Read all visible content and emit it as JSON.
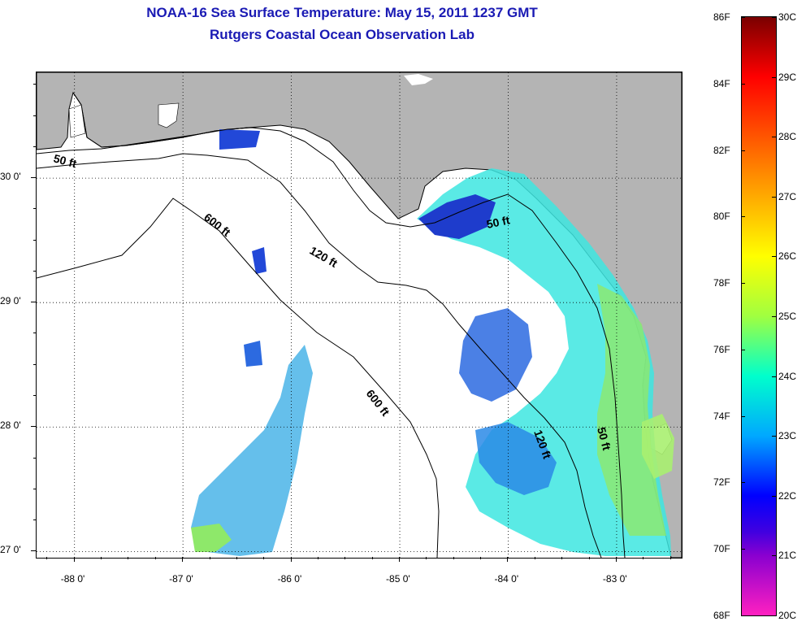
{
  "header": {
    "title_line1": "NOAA-16 Sea Surface Temperature:  May 15, 2011 1237 GMT",
    "title_line2": "Rutgers Coastal Ocean Observation Lab"
  },
  "map": {
    "lon_range": [
      -88.35,
      -82.4
    ],
    "lat_range": [
      26.95,
      30.85
    ],
    "lon_ticks": [
      {
        "value": -88,
        "label": "-88 0'"
      },
      {
        "value": -87,
        "label": "-87 0'"
      },
      {
        "value": -86,
        "label": "-86 0'"
      },
      {
        "value": -85,
        "label": "-85 0'"
      },
      {
        "value": -84,
        "label": "-84 0'"
      },
      {
        "value": -83,
        "label": "-83 0'"
      }
    ],
    "lat_ticks": [
      {
        "value": 30,
        "label": "30 0'"
      },
      {
        "value": 29,
        "label": "29 0'"
      },
      {
        "value": 28,
        "label": "28 0'"
      },
      {
        "value": 27,
        "label": "27 0'"
      }
    ],
    "depth_labels": [
      "50 ft",
      "600 ft",
      "120 ft",
      "50 ft",
      "600 ft",
      "120 ft",
      "50 ft"
    ],
    "colors": {
      "land": "#b4b4b4",
      "ocean_no_data": "#ffffff",
      "coastline": "#000000"
    }
  },
  "colorbar": {
    "range_c": [
      20,
      30
    ],
    "fahrenheit_labels": [
      "86F",
      "84F",
      "82F",
      "80F",
      "78F",
      "76F",
      "74F",
      "72F",
      "70F",
      "68F"
    ],
    "celsius_labels": [
      "30C",
      "29C",
      "28C",
      "27C",
      "26C",
      "25C",
      "24C",
      "23C",
      "22C",
      "21C",
      "20C"
    ]
  }
}
